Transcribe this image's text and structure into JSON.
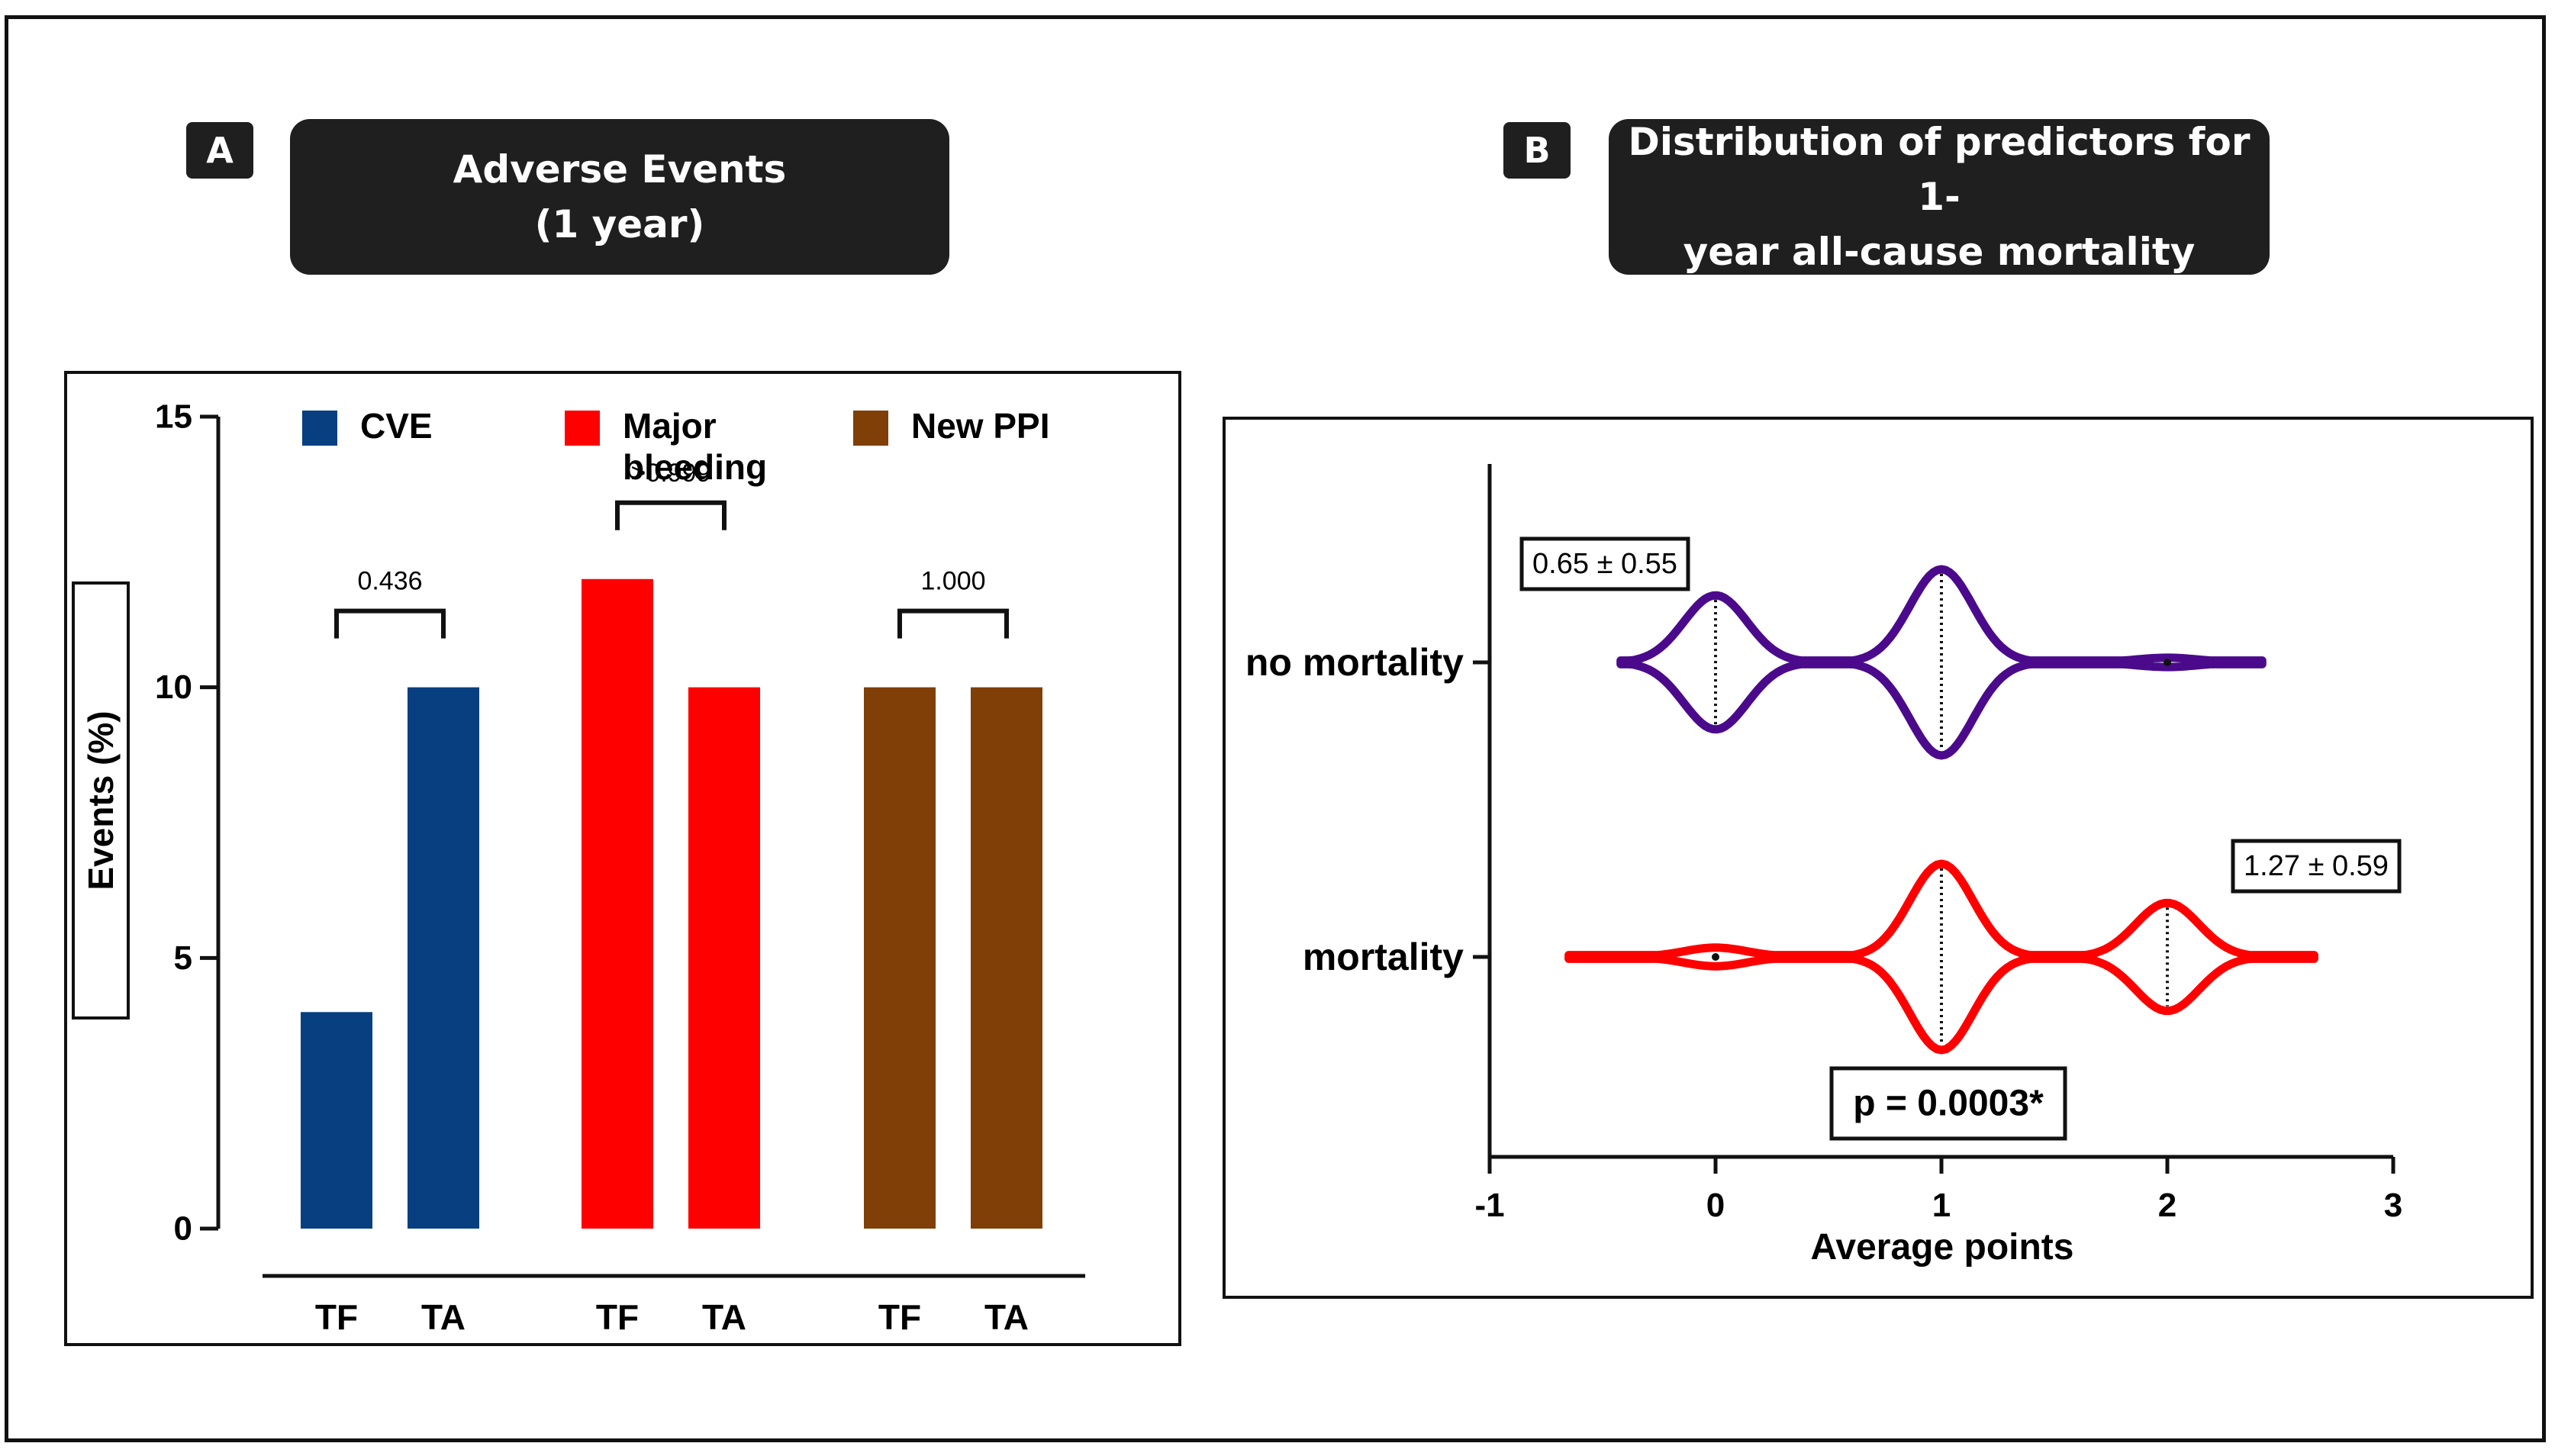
{
  "panel_a": {
    "letter": "A",
    "title_line1": "Adverse Events",
    "title_line2": "(1 year)"
  },
  "panel_b": {
    "letter": "B",
    "title_line1": "Distribution of predictors for 1-",
    "title_line2": "year all-cause mortality"
  },
  "chart_data": [
    {
      "type": "bar",
      "ylabel": "Events (%)",
      "ylim": [
        0,
        15
      ],
      "yticks": [
        0,
        5,
        10,
        15
      ],
      "legend": [
        {
          "label": "CVE",
          "color": "#073f80"
        },
        {
          "label": "Major bleeding",
          "label_lines": [
            "Major",
            "bleeding"
          ],
          "color": "#ff0000"
        },
        {
          "label": "New PPI",
          "color": "#7f3f07"
        }
      ],
      "groups": [
        {
          "name": "CVE",
          "color": "#073f80",
          "categories": [
            "TF",
            "TA"
          ],
          "values": [
            4,
            10
          ],
          "p_value": "0.436"
        },
        {
          "name": "Major bleeding",
          "color": "#ff0000",
          "categories": [
            "TF",
            "TA"
          ],
          "values": [
            12,
            10
          ],
          "p_value": ">0.999"
        },
        {
          "name": "New PPI",
          "color": "#7f3f07",
          "categories": [
            "TF",
            "TA"
          ],
          "values": [
            10,
            10
          ],
          "p_value": "1.000"
        }
      ]
    },
    {
      "type": "violin",
      "xlabel": "Average points",
      "xlim": [
        -1,
        3
      ],
      "xticks": [
        -1,
        0,
        1,
        2,
        3
      ],
      "p_value_label": "p = 0.0003*",
      "series": [
        {
          "name": "no mortality",
          "color": "#4b0a8c",
          "annotation": "0.65 ± 0.55",
          "range": [
            -0.42,
            2.42
          ],
          "modes": [
            {
              "x": 0,
              "relative_density": 0.72
            },
            {
              "x": 1,
              "relative_density": 1.0
            },
            {
              "x": 2,
              "relative_density": 0.05
            }
          ]
        },
        {
          "name": "mortality",
          "color": "#ff0000",
          "annotation": "1.27 ± 0.59",
          "range": [
            -0.65,
            2.65
          ],
          "modes": [
            {
              "x": 0,
              "relative_density": 0.1
            },
            {
              "x": 1,
              "relative_density": 1.0
            },
            {
              "x": 2,
              "relative_density": 0.58
            }
          ]
        }
      ]
    }
  ]
}
